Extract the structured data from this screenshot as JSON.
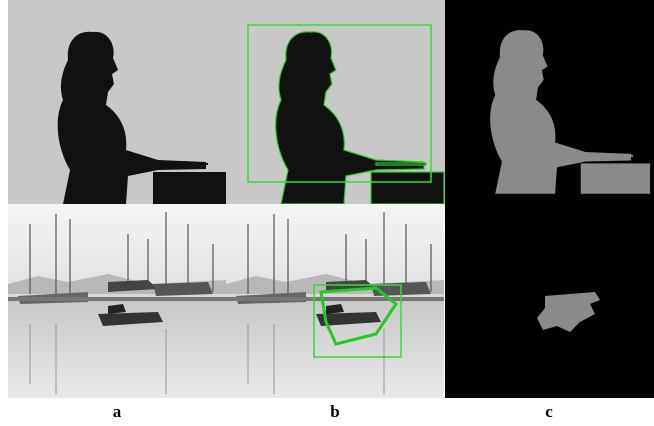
{
  "figure": {
    "labels": [
      "a",
      "b",
      "c"
    ]
  }
}
